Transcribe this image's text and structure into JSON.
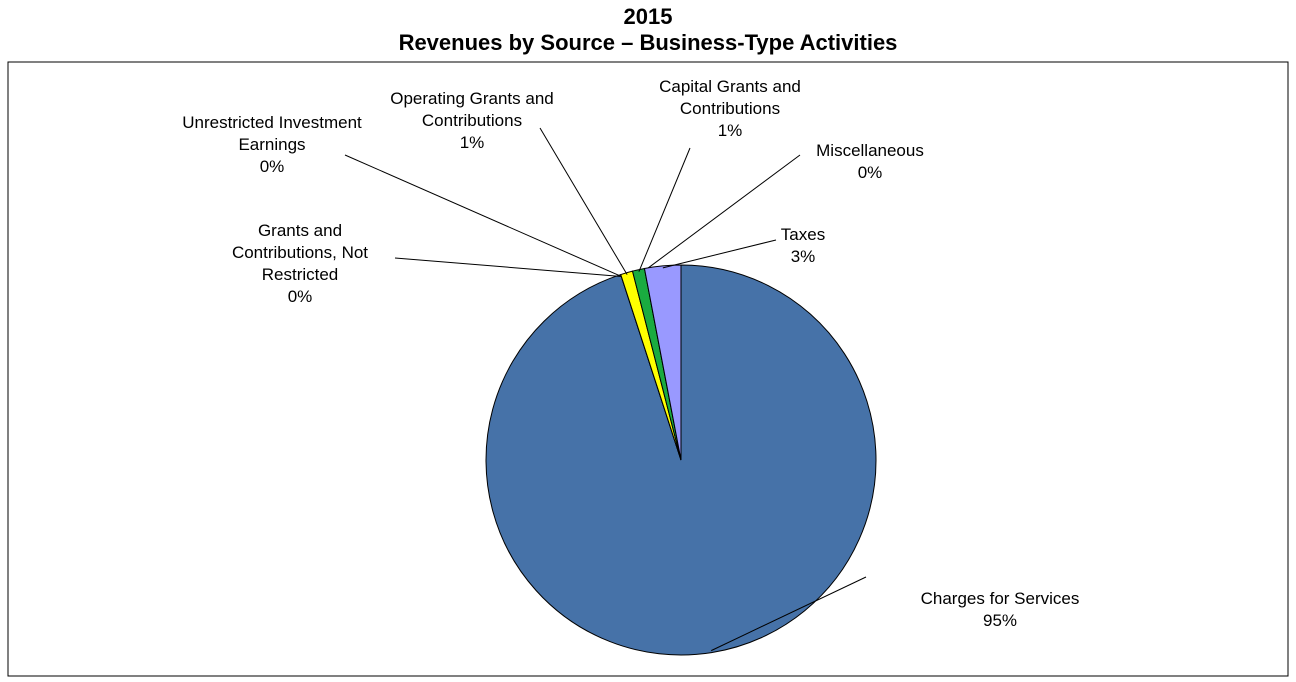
{
  "chart_data": {
    "type": "pie",
    "title": "2015",
    "subtitle": "Revenues by Source – Business-Type Activities",
    "categories": [
      "Charges for Services",
      "Grants and Contributions, Not Restricted",
      "Unrestricted Investment Earnings",
      "Operating Grants and Contributions",
      "Capital Grants and Contributions",
      "Miscellaneous",
      "Taxes"
    ],
    "values": [
      95,
      0,
      0,
      1,
      1,
      0,
      3
    ],
    "value_labels": [
      "95%",
      "0%",
      "0%",
      "1%",
      "1%",
      "0%",
      "3%"
    ],
    "colors": [
      "#4672a8",
      "#993366",
      "#ffffcc",
      "#ffff00",
      "#1aab40",
      "#ccffff",
      "#9999ff"
    ]
  }
}
